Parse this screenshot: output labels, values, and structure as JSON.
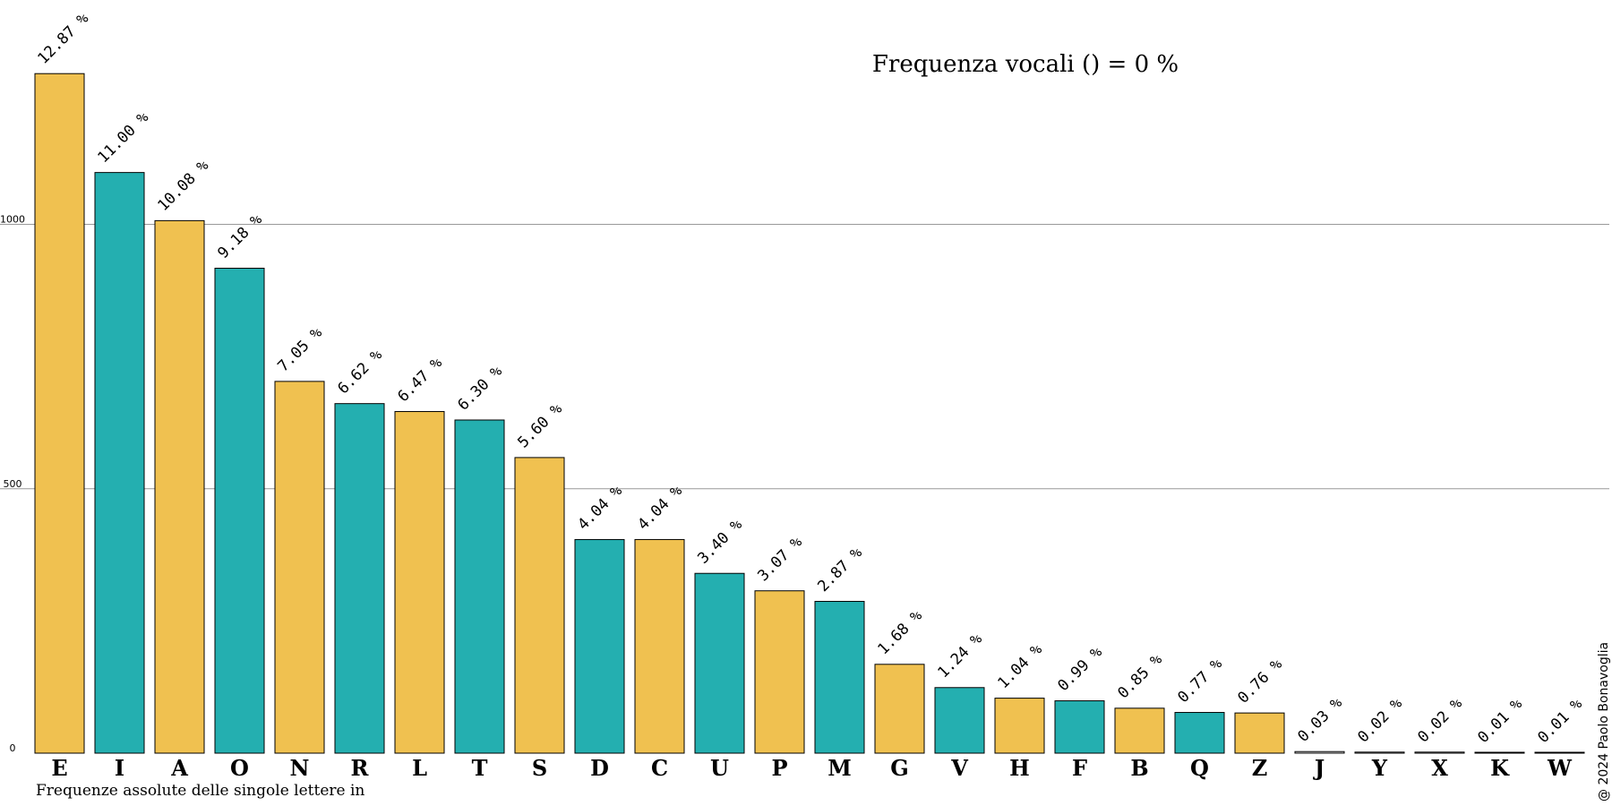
{
  "chart_data": {
    "type": "bar",
    "title": "Frequenza vocali () = 0 %",
    "footer": "Frequenze assolute delle singole lettere in",
    "credit": "@ 2024 Paolo Bonavoglia",
    "xlabel": "",
    "ylabel": "",
    "ylim": [
      0,
      1300
    ],
    "yticks": [
      0,
      500,
      1000
    ],
    "grid": "horizontal",
    "categories": [
      "E",
      "I",
      "A",
      "O",
      "N",
      "R",
      "L",
      "T",
      "S",
      "D",
      "C",
      "U",
      "P",
      "M",
      "G",
      "V",
      "H",
      "F",
      "B",
      "Q",
      "Z",
      "J",
      "Y",
      "X",
      "K",
      "W"
    ],
    "values": [
      1285,
      1098,
      1007,
      917,
      703,
      661,
      646,
      630,
      559,
      404,
      404,
      340,
      307,
      287,
      168,
      124,
      104,
      99,
      85,
      77,
      76,
      3,
      2,
      2,
      1,
      1
    ],
    "percent_labels": [
      "12.87 %",
      "11.00 %",
      "10.08 %",
      "9.18 %",
      "7.05 %",
      "6.62 %",
      "6.47 %",
      "6.30 %",
      "5.60 %",
      "4.04 %",
      "4.04 %",
      "3.40 %",
      "3.07 %",
      "2.87 %",
      "1.68 %",
      "1.24 %",
      "1.04 %",
      "0.99 %",
      "0.85 %",
      "0.77 %",
      "0.76 %",
      "0.03 %",
      "0.02 %",
      "0.02 %",
      "0.01 %",
      "0.01 %"
    ],
    "colors": {
      "gold": "#F0C150",
      "teal": "#24AFB0",
      "grey": "#E8E8E8",
      "outline": "#000000",
      "gridline": "#999999"
    },
    "bar_colors": [
      "gold",
      "teal",
      "gold",
      "teal",
      "gold",
      "teal",
      "gold",
      "teal",
      "gold",
      "teal",
      "gold",
      "teal",
      "gold",
      "teal",
      "gold",
      "teal",
      "gold",
      "teal",
      "gold",
      "teal",
      "gold",
      "grey",
      "grey",
      "grey",
      "grey",
      "grey"
    ]
  }
}
